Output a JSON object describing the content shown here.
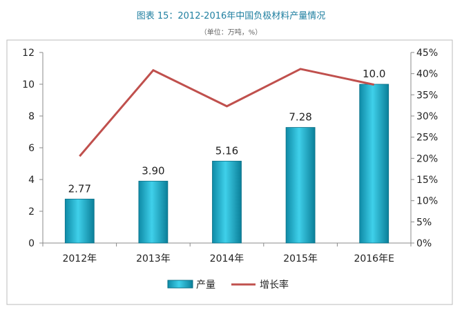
{
  "chart_data": {
    "type": "bar",
    "title": "图表 15：2012-2016年中国负极材料产量情况",
    "subtitle": "（单位：万吨，%）",
    "categories": [
      "2012年",
      "2013年",
      "2014年",
      "2015年",
      "2016年E"
    ],
    "series": [
      {
        "name": "产量",
        "type": "bar",
        "axis": "left",
        "values": [
          2.77,
          3.9,
          5.16,
          7.28,
          10.0
        ],
        "labels": [
          "2.77",
          "3.90",
          "5.16",
          "7.28",
          "10.0"
        ],
        "color": "#1fb3cf"
      },
      {
        "name": "增长率",
        "type": "line",
        "axis": "right",
        "values": [
          20.5,
          40.8,
          32.3,
          41.1,
          37.4
        ],
        "color": "#c0504d"
      }
    ],
    "ylim_left": [
      0,
      12
    ],
    "yticks_left": [
      "0",
      "2",
      "4",
      "6",
      "8",
      "10",
      "12"
    ],
    "ylim_right": [
      0,
      45
    ],
    "yticks_right": [
      "0%",
      "5%",
      "10%",
      "15%",
      "20%",
      "25%",
      "30%",
      "35%",
      "40%",
      "45%"
    ],
    "legend": "bottom",
    "grid": false
  }
}
